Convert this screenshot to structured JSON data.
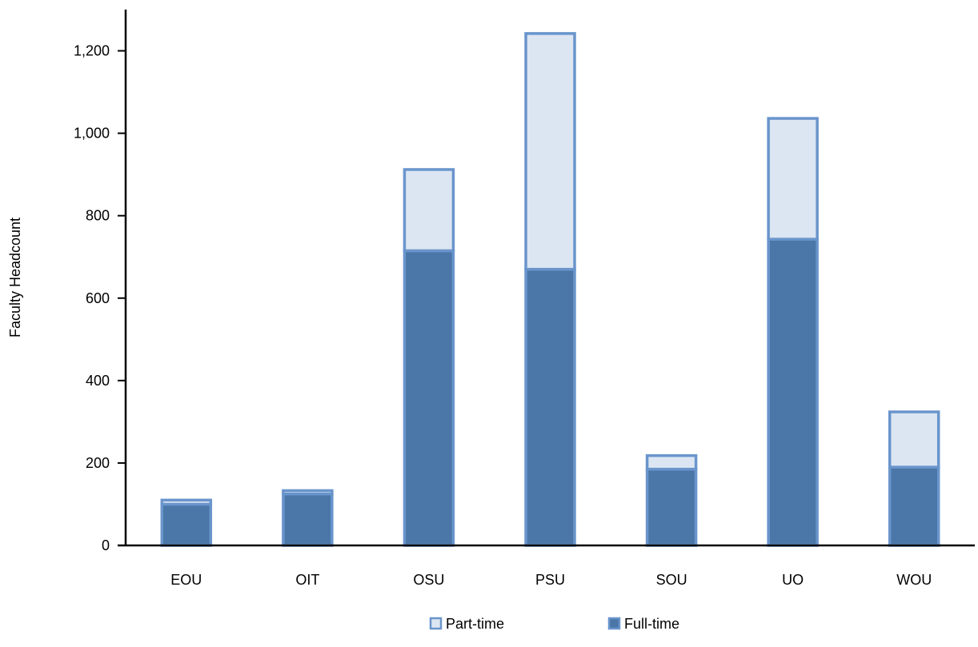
{
  "chart_data": {
    "type": "bar",
    "stacked": true,
    "title": "",
    "xlabel": "",
    "ylabel": "Faculty Headcount",
    "categories": [
      "EOU",
      "OIT",
      "OSU",
      "PSU",
      "SOU",
      "UO",
      "WOU"
    ],
    "series": [
      {
        "name": "Full-time",
        "values": [
          100,
          125,
          715,
          670,
          185,
          743,
          190
        ],
        "color": "#4A76A8"
      },
      {
        "name": "Part-time",
        "values": [
          10,
          8,
          197,
          572,
          33,
          293,
          134
        ],
        "color": "#DCE6F2"
      }
    ],
    "ylim": [
      0,
      1300
    ],
    "yticks": [
      0,
      200,
      400,
      600,
      800,
      1000,
      1200
    ],
    "ytick_labels": [
      "0",
      "200",
      "400",
      "600",
      "800",
      "1,000",
      "1,200"
    ],
    "grid": false,
    "legend": {
      "position": "bottom",
      "order": [
        "Part-time",
        "Full-time"
      ]
    },
    "bar_edge_color": "#6A95CC"
  }
}
